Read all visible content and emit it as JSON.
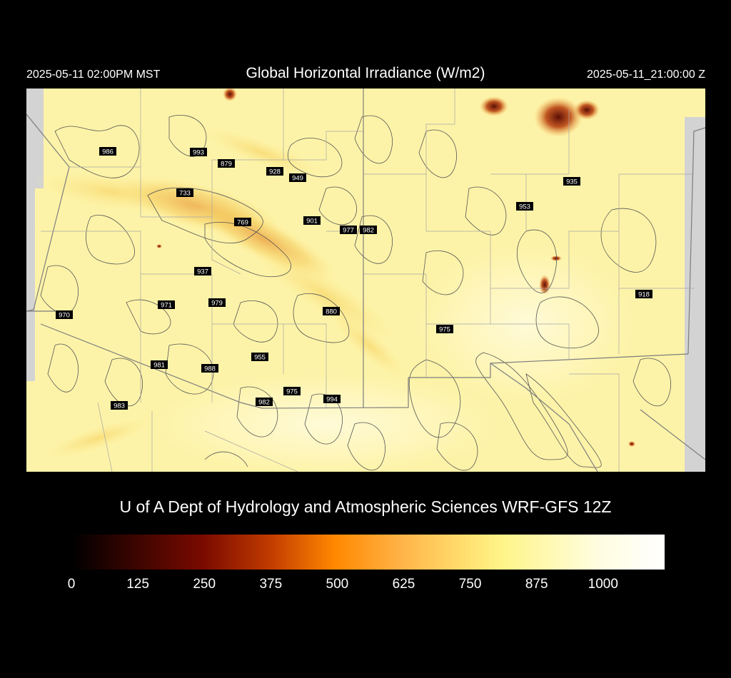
{
  "header": {
    "local_time": "2025-05-11 02:00PM MST",
    "title": "Global Horizontal Irradiance (W/m2)",
    "utc_time": "2025-05-11_21:00:00 Z"
  },
  "credit": "U of A Dept of Hydrology and Atmospheric Sciences WRF-GFS 12Z",
  "colors": {
    "background": "#000000",
    "map_base": "#fdf3a8",
    "map_bright": "#fffbd8",
    "band": "#f6cf5a",
    "band_dark": "#eaa84a",
    "hotspot": "#7a1a08",
    "contour": "#555555",
    "boundary": "#7d7d7d",
    "nodata": "#d3d3d3"
  },
  "colorbar": {
    "ticks": [
      "0",
      "125",
      "250",
      "375",
      "500",
      "625",
      "750",
      "875",
      "1000"
    ],
    "stops": [
      {
        "value": 0,
        "color": "#000000"
      },
      {
        "value": 250,
        "color": "#7a0a00"
      },
      {
        "value": 375,
        "color": "#c03a00"
      },
      {
        "value": 500,
        "color": "#ff8800"
      },
      {
        "value": 625,
        "color": "#ffb347"
      },
      {
        "value": 750,
        "color": "#ffe070"
      },
      {
        "value": 820,
        "color": "#fff58a"
      },
      {
        "value": 1000,
        "color": "#fffde0"
      },
      {
        "value": 1125,
        "color": "#ffffff"
      }
    ],
    "max": 1125
  },
  "stations": [
    {
      "label": "986"
    },
    {
      "label": "993"
    },
    {
      "label": "879"
    },
    {
      "label": "928"
    },
    {
      "label": "949"
    },
    {
      "label": "733"
    },
    {
      "label": "769"
    },
    {
      "label": "901"
    },
    {
      "label": "977"
    },
    {
      "label": "982"
    },
    {
      "label": "935"
    },
    {
      "label": "953"
    },
    {
      "label": "937"
    },
    {
      "label": "971"
    },
    {
      "label": "979"
    },
    {
      "label": "880"
    },
    {
      "label": "970"
    },
    {
      "label": "918"
    },
    {
      "label": "975"
    },
    {
      "label": "955"
    },
    {
      "label": "981"
    },
    {
      "label": "988"
    },
    {
      "label": "975"
    },
    {
      "label": "982"
    },
    {
      "label": "994"
    },
    {
      "label": "983"
    }
  ]
}
